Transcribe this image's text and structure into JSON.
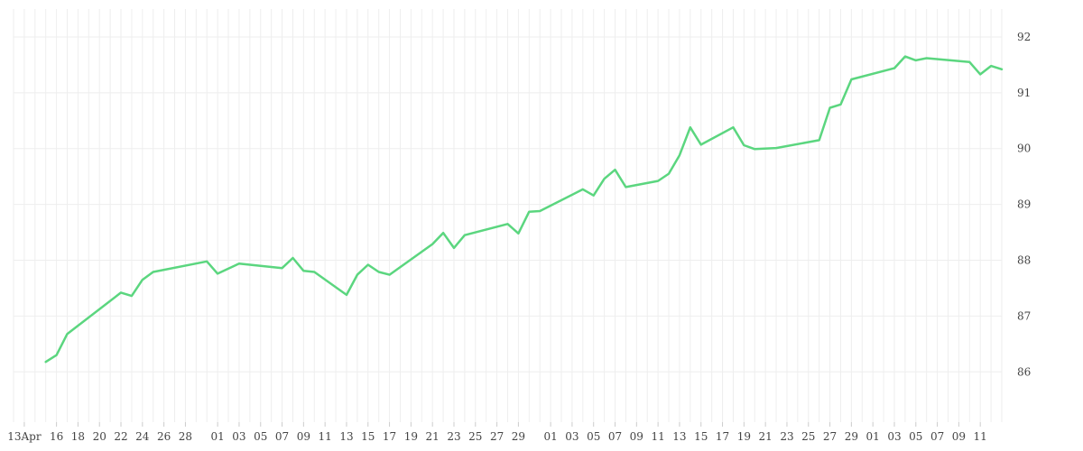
{
  "chart_data": {
    "type": "line",
    "title": "",
    "xlabel": "",
    "ylabel": "",
    "ylim": [
      85.1,
      92.5
    ],
    "y_ticks": [
      86,
      87,
      88,
      89,
      90,
      91,
      92
    ],
    "x_tick_labels": [
      "13Apr",
      "16",
      "18",
      "20",
      "22",
      "24",
      "26",
      "28",
      "01",
      "03",
      "05",
      "07",
      "09",
      "11",
      "13",
      "15",
      "17",
      "19",
      "21",
      "23",
      "25",
      "27",
      "29",
      "01",
      "03",
      "05",
      "07",
      "09",
      "11",
      "13",
      "15",
      "17",
      "19",
      "21",
      "23",
      "25",
      "27",
      "29",
      "01",
      "03",
      "05",
      "07",
      "09",
      "11"
    ],
    "x_tick_dates": [
      "2024-04-13",
      "2024-04-16",
      "2024-04-18",
      "2024-04-20",
      "2024-04-22",
      "2024-04-24",
      "2024-04-26",
      "2024-04-28",
      "2024-05-01",
      "2024-05-03",
      "2024-05-05",
      "2024-05-07",
      "2024-05-09",
      "2024-05-11",
      "2024-05-13",
      "2024-05-15",
      "2024-05-17",
      "2024-05-19",
      "2024-05-21",
      "2024-05-23",
      "2024-05-25",
      "2024-05-27",
      "2024-05-29",
      "2024-06-01",
      "2024-06-03",
      "2024-06-05",
      "2024-06-07",
      "2024-06-09",
      "2024-06-11",
      "2024-06-13",
      "2024-06-15",
      "2024-06-17",
      "2024-06-19",
      "2024-06-21",
      "2024-06-23",
      "2024-06-25",
      "2024-06-27",
      "2024-06-29",
      "2024-07-01",
      "2024-07-03",
      "2024-07-05",
      "2024-07-07",
      "2024-07-09",
      "2024-07-11"
    ],
    "x_range": [
      "2024-04-12",
      "2024-07-13"
    ],
    "grid": true,
    "colors": {
      "line": "#5bd67f",
      "grid": "#eeeeee",
      "tick": "#444444"
    },
    "series": [
      {
        "x": [
          "2024-04-15",
          "2024-04-16",
          "2024-04-17",
          "2024-04-22",
          "2024-04-23",
          "2024-04-24",
          "2024-04-25",
          "2024-04-30",
          "2024-05-01",
          "2024-05-03",
          "2024-05-07",
          "2024-05-08",
          "2024-05-09",
          "2024-05-10",
          "2024-05-13",
          "2024-05-14",
          "2024-05-15",
          "2024-05-16",
          "2024-05-17",
          "2024-05-21",
          "2024-05-22",
          "2024-05-23",
          "2024-05-24",
          "2024-05-28",
          "2024-05-29",
          "2024-05-30",
          "2024-05-31",
          "2024-06-04",
          "2024-06-05",
          "2024-06-06",
          "2024-06-07",
          "2024-06-08",
          "2024-06-11",
          "2024-06-12",
          "2024-06-13",
          "2024-06-14",
          "2024-06-15",
          "2024-06-18",
          "2024-06-19",
          "2024-06-20",
          "2024-06-22",
          "2024-06-26",
          "2024-06-27",
          "2024-06-28",
          "2024-06-29",
          "2024-07-03",
          "2024-07-04",
          "2024-07-05",
          "2024-07-06",
          "2024-07-10",
          "2024-07-11",
          "2024-07-12",
          "2024-07-13"
        ],
        "values": [
          86.18,
          86.3,
          86.68,
          87.42,
          87.36,
          87.65,
          87.79,
          87.98,
          87.76,
          87.94,
          87.86,
          88.04,
          87.81,
          87.79,
          87.38,
          87.74,
          87.92,
          87.79,
          87.74,
          88.29,
          88.49,
          88.22,
          88.45,
          88.65,
          88.48,
          88.87,
          88.88,
          89.27,
          89.16,
          89.46,
          89.62,
          89.31,
          89.42,
          89.55,
          89.88,
          90.38,
          90.07,
          90.38,
          90.06,
          89.99,
          90.01,
          90.15,
          90.73,
          90.79,
          91.24,
          91.44,
          91.65,
          91.58,
          91.62,
          91.55,
          91.33,
          91.48,
          91.42
        ]
      }
    ]
  }
}
